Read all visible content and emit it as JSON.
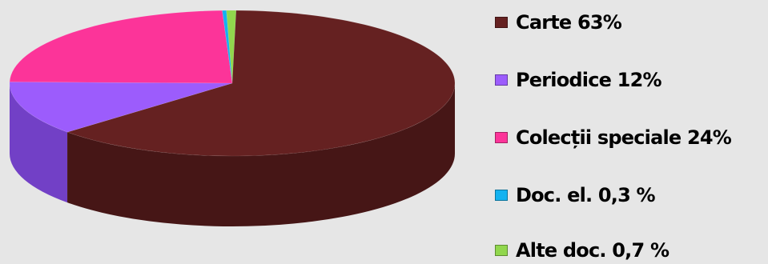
{
  "chart_data": {
    "type": "pie",
    "title": "",
    "legend_position": "right",
    "slices": [
      {
        "label": "Carte 63%",
        "value": 63,
        "color": "#652121",
        "side_color": "#461616"
      },
      {
        "label": "Periodice 12%",
        "value": 12,
        "color": "#9c5cfc",
        "side_color": "#7240c6"
      },
      {
        "label": "Colecții speciale 24%",
        "value": 24,
        "color": "#fc3499",
        "side_color": "#c4237a"
      },
      {
        "label": "Doc. el. 0,3 %",
        "value": 0.3,
        "color": "#13b2f0",
        "side_color": "#0d86b8"
      },
      {
        "label": "Alte doc. 0,7 %",
        "value": 0.7,
        "color": "#91d74d",
        "side_color": "#6aa733"
      }
    ]
  }
}
